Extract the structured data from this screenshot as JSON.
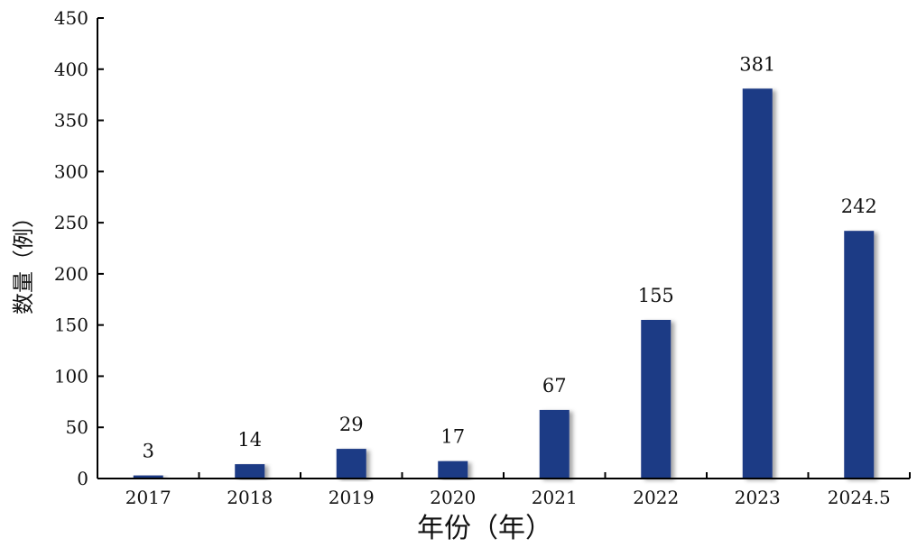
{
  "chart_data": {
    "type": "bar",
    "categories": [
      "2017",
      "2018",
      "2019",
      "2020",
      "2021",
      "2022",
      "2023",
      "2024.5"
    ],
    "values": [
      3,
      14,
      29,
      17,
      67,
      155,
      381,
      242
    ],
    "title": "",
    "xlabel": "年份（年）",
    "ylabel": "数量（例）",
    "ylim": [
      0,
      450
    ],
    "yticks": [
      0,
      50,
      100,
      150,
      200,
      250,
      300,
      350,
      400,
      450
    ],
    "grid": false,
    "bar_color": "#1f3a85",
    "data_labels": [
      "3",
      "14",
      "29",
      "17",
      "67",
      "155",
      "381",
      "242"
    ]
  }
}
